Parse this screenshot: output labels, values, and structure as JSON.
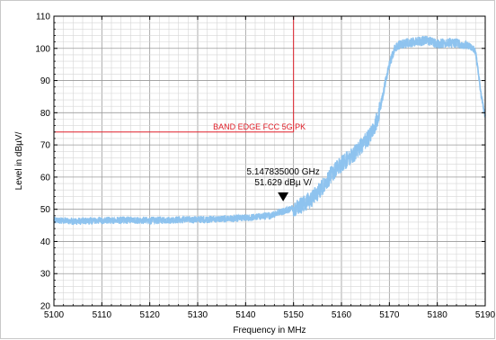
{
  "chart_data": {
    "type": "line",
    "xlabel": "Frequency in MHz",
    "ylabel": "Level in dBµV/",
    "xlim": [
      5100,
      5190
    ],
    "ylim": [
      20,
      110
    ],
    "x_ticks": [
      "5100",
      "5110",
      "5120",
      "5130",
      "5140",
      "5150",
      "5160",
      "5170",
      "5180",
      "5190"
    ],
    "y_ticks": [
      "20",
      "30",
      "40",
      "50",
      "60",
      "70",
      "80",
      "90",
      "100",
      "110"
    ],
    "grid": true,
    "trace_color": "#8ec3ee",
    "limit_color": "#e0202a",
    "series": [
      {
        "x": [
          5100,
          5105,
          5110,
          5115,
          5120,
          5125,
          5130,
          5135,
          5140,
          5145,
          5148,
          5150,
          5152,
          5154,
          5156,
          5158,
          5160,
          5162,
          5164,
          5166,
          5167,
          5168,
          5169,
          5170,
          5171,
          5172,
          5174,
          5176,
          5178,
          5180,
          5182,
          5184,
          5186,
          5187,
          5188,
          5189,
          5190
        ],
        "y": [
          46.5,
          46.3,
          46.5,
          46.6,
          46.5,
          46.7,
          46.8,
          47.0,
          47.3,
          48.0,
          49.5,
          50.5,
          51.5,
          53.5,
          57.0,
          61.0,
          64.0,
          66.5,
          69.5,
          73.0,
          76.0,
          81.0,
          88.0,
          95.0,
          99.5,
          101.0,
          101.8,
          102.2,
          102.5,
          101.5,
          101.8,
          101.5,
          101.0,
          100.5,
          99.0,
          87.0,
          78.5
        ]
      }
    ],
    "limit_line": {
      "label": "BAND EDGE FCC 5G PK",
      "level": 74,
      "x_start": 5100,
      "x_end": 5150
    },
    "marker": {
      "x": 5147.835,
      "y": 51.629,
      "freq_text": "5.147835000 GHz",
      "level_text": "51.629 dBµ V/"
    }
  }
}
